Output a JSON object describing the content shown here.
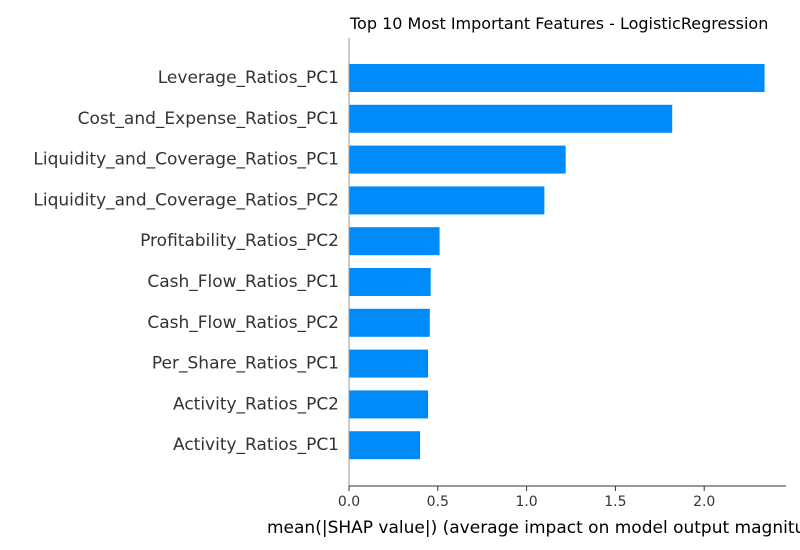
{
  "chart_data": {
    "type": "bar",
    "orientation": "horizontal",
    "title": "Top 10 Most Important Features - LogisticRegression",
    "xlabel": "mean(|SHAP value|) (average impact on model output magnitude)",
    "ylabel": "",
    "categories": [
      "Leverage_Ratios_PC1",
      "Cost_and_Expense_Ratios_PC1",
      "Liquidity_and_Coverage_Ratios_PC1",
      "Liquidity_and_Coverage_Ratios_PC2",
      "Profitability_Ratios_PC2",
      "Cash_Flow_Ratios_PC1",
      "Cash_Flow_Ratios_PC2",
      "Per_Share_Ratios_PC1",
      "Activity_Ratios_PC2",
      "Activity_Ratios_PC1"
    ],
    "values": [
      2.34,
      1.82,
      1.22,
      1.1,
      0.51,
      0.46,
      0.455,
      0.445,
      0.445,
      0.4
    ],
    "xticks": [
      0.0,
      0.5,
      1.0,
      1.5,
      2.0
    ],
    "xtick_labels": [
      "0.0",
      "0.5",
      "1.0",
      "1.5",
      "2.0"
    ],
    "xlim": [
      0,
      2.46
    ],
    "grid": false,
    "bar_color": "#008bfb"
  }
}
